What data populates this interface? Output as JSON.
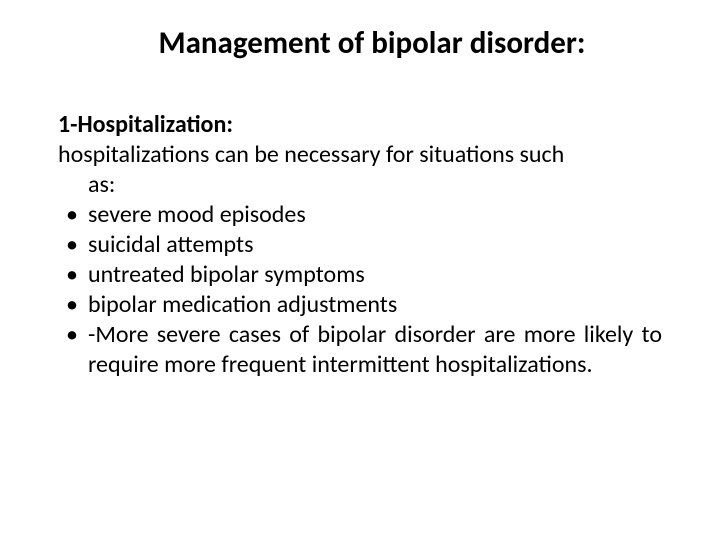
{
  "title": "Management of bipolar disorder:",
  "heading": "1-Hospitalization:",
  "intro_line1": "hospitalizations can be necessary for situations such",
  "intro_line2": "as:",
  "bullets": {
    "item1": "severe mood episodes",
    "item2": "suicidal attempts",
    "item3": "untreated bipolar symptoms",
    "item4": "bipolar medication adjustments",
    "item5": "-More severe cases of bipolar disorder are more likely to require more frequent intermittent hospitalizations."
  },
  "colors": {
    "background": "#ffffff",
    "text": "#000000"
  },
  "typography": {
    "title_fontsize": 31,
    "body_fontsize": 24,
    "title_weight": "bold",
    "heading_weight": "bold",
    "font_family": "Calibri"
  }
}
